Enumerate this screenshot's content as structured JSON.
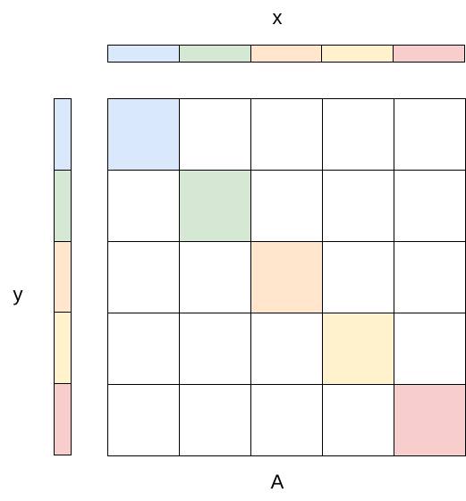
{
  "labels": {
    "x": "x",
    "y": "y",
    "a": "A"
  },
  "colors": [
    "#dae8fc",
    "#d5e8d4",
    "#ffe6cc",
    "#fff2cc",
    "#f8cecc"
  ],
  "matrix": {
    "rows": 5,
    "cols": 5,
    "filled": "diagonal",
    "empty_color": "#ffffff"
  }
}
